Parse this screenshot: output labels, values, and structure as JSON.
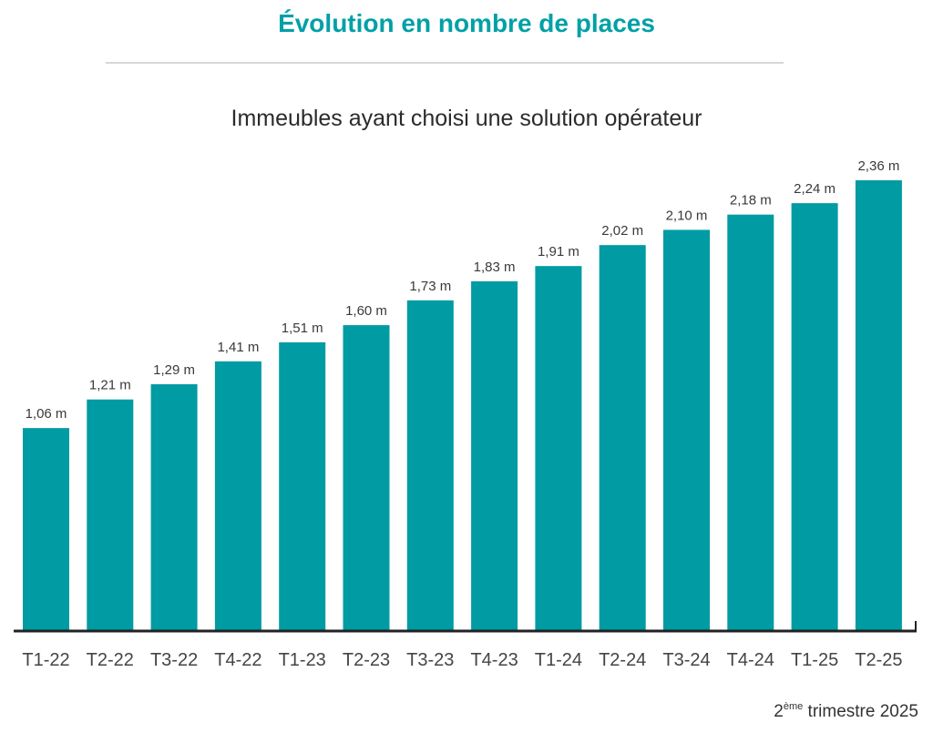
{
  "title": "Évolution en nombre de places",
  "colors": {
    "accent": "#00a0a7",
    "bar": "#009ba3",
    "axis": "#222222"
  },
  "chart_data": {
    "type": "bar",
    "title": "Immeubles ayant choisi une solution opérateur",
    "xlabel": "",
    "ylabel": "",
    "unit": "m",
    "grid": false,
    "ylim": [
      0,
      2.36
    ],
    "categories": [
      "T1-22",
      "T2-22",
      "T3-22",
      "T4-22",
      "T1-23",
      "T2-23",
      "T3-23",
      "T4-23",
      "T1-24",
      "T2-24",
      "T3-24",
      "T4-24",
      "T1-25",
      "T2-25"
    ],
    "values": [
      1.06,
      1.21,
      1.29,
      1.41,
      1.51,
      1.6,
      1.73,
      1.83,
      1.91,
      2.02,
      2.1,
      2.18,
      2.24,
      2.36
    ],
    "data_labels": [
      "1,06 m",
      "1,21 m",
      "1,29 m",
      "1,41 m",
      "1,51 m",
      "1,60 m",
      "1,73 m",
      "1,83 m",
      "1,91 m",
      "2,02 m",
      "2,10 m",
      "2,18 m",
      "2,24 m",
      "2,36 m"
    ]
  },
  "footer": {
    "number": "2",
    "superscript": "ème",
    "text": " trimestre 2025"
  }
}
